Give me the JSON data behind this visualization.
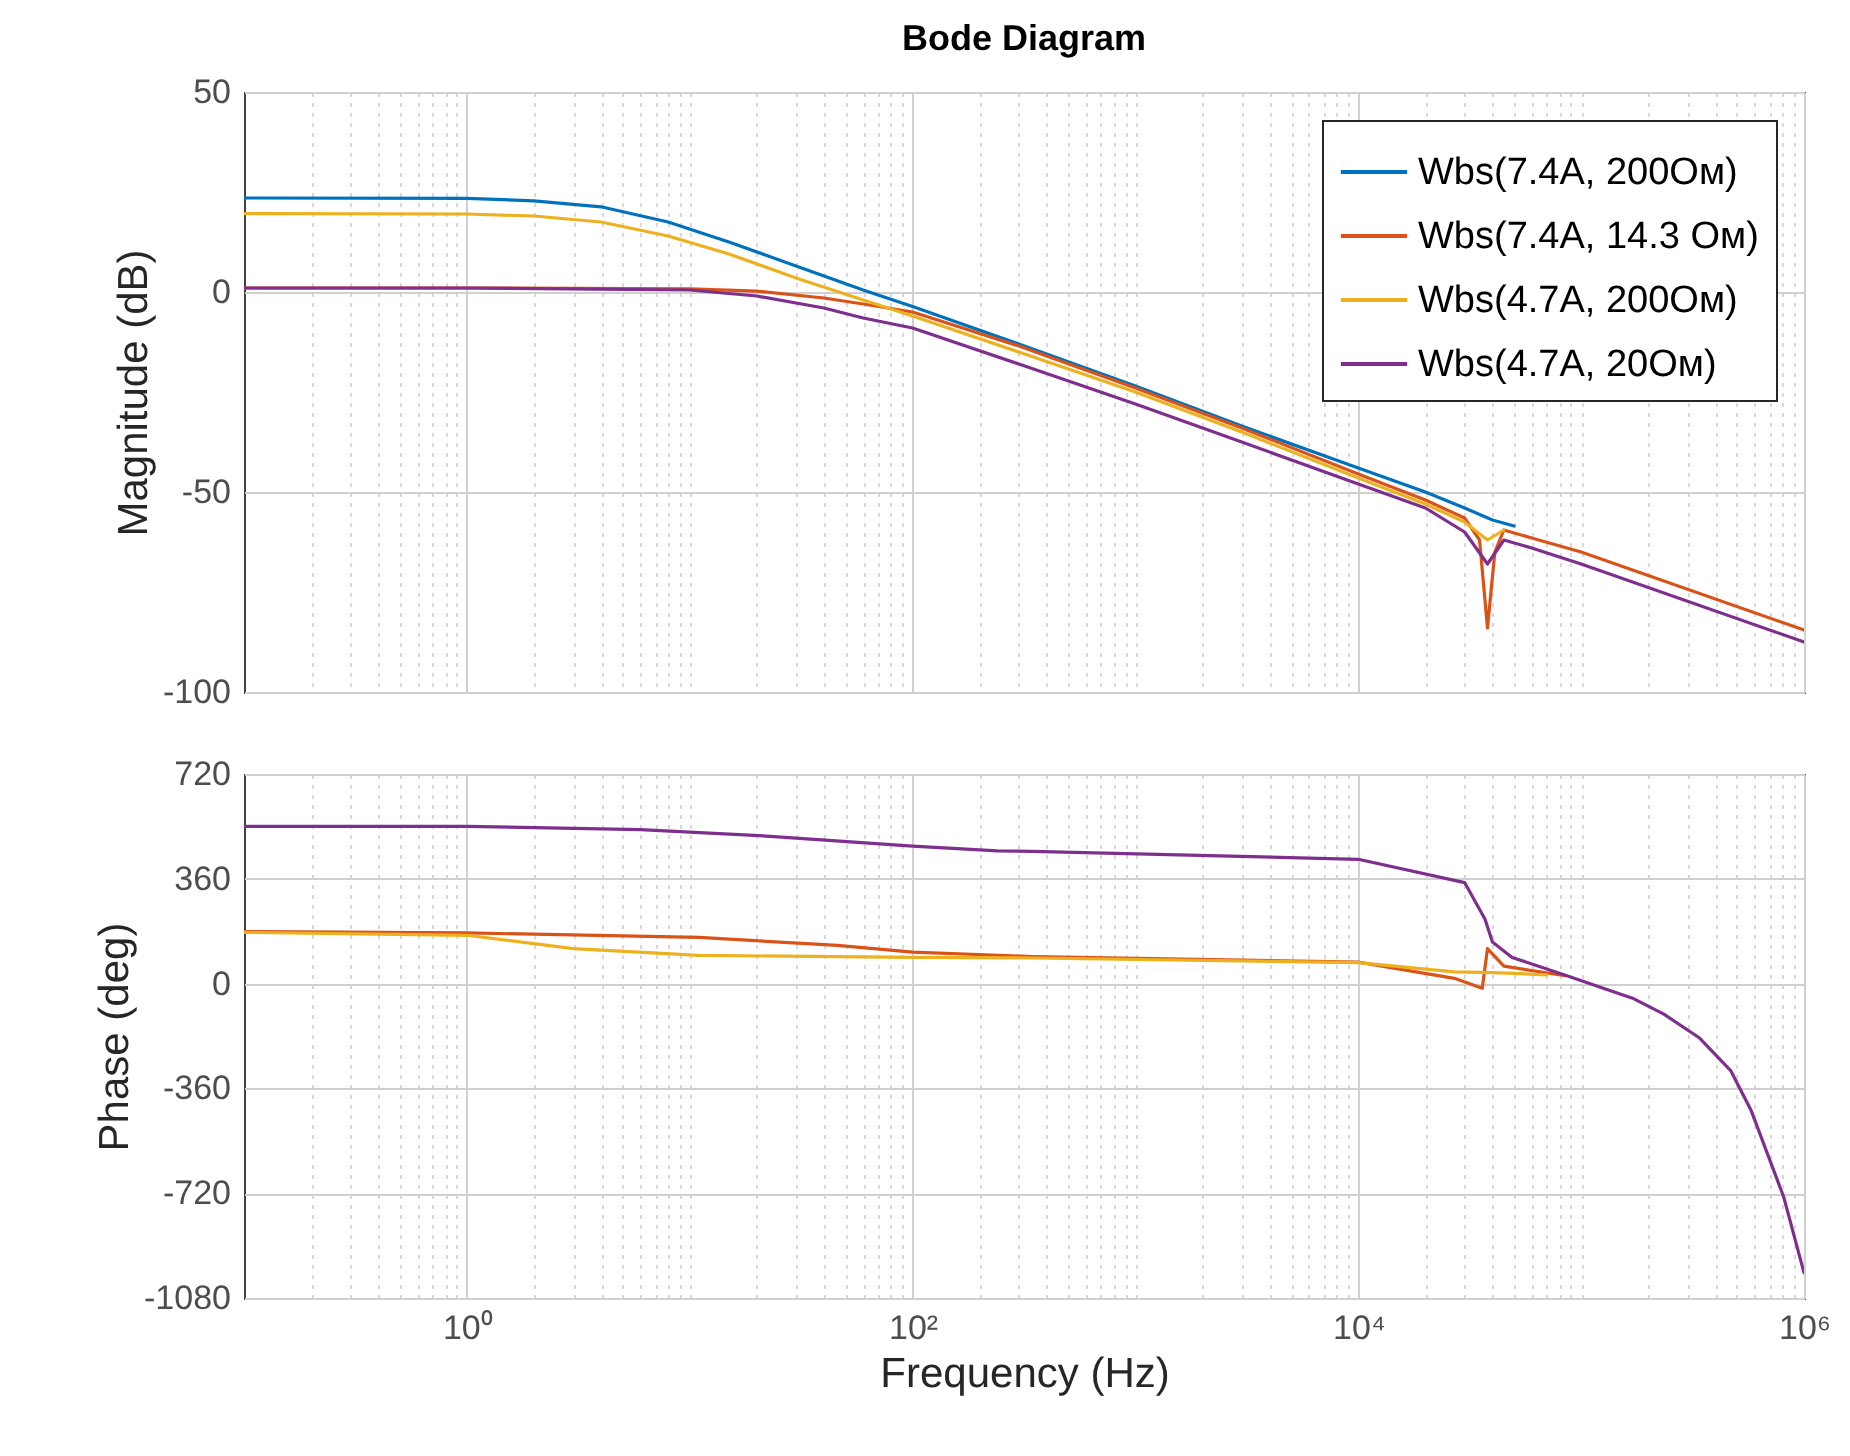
{
  "chart_data": [
    {
      "type": "line",
      "title": "Bode Diagram",
      "ylabel": "Magnitude (dB)",
      "log": "x",
      "grid": true,
      "legend": "top right",
      "tick_labels": "y",
      "xlim": [
        0.1,
        1000000
      ],
      "ylim": [
        -100,
        50
      ],
      "yticks": [
        -100,
        -50,
        0,
        50
      ],
      "xticks": [
        {
          "value": 0.2,
          "label": null
        },
        {
          "value": 0.3,
          "label": null
        },
        {
          "value": 0.4,
          "label": null
        },
        {
          "value": 0.5,
          "label": null
        },
        {
          "value": 0.6,
          "label": null
        },
        {
          "value": 0.7,
          "label": null
        },
        {
          "value": 0.8,
          "label": null
        },
        {
          "value": 0.9,
          "label": null
        },
        1,
        {
          "value": 2,
          "label": null
        },
        {
          "value": 3,
          "label": null
        },
        {
          "value": 4,
          "label": null
        },
        {
          "value": 5,
          "label": null
        },
        {
          "value": 6,
          "label": null
        },
        {
          "value": 7,
          "label": null
        },
        {
          "value": 8,
          "label": null
        },
        {
          "value": 9,
          "label": null
        },
        {
          "value": 10,
          "label": null
        },
        {
          "value": 20,
          "label": null
        },
        {
          "value": 30,
          "label": null
        },
        {
          "value": 40,
          "label": null
        },
        {
          "value": 50,
          "label": null
        },
        {
          "value": 60,
          "label": null
        },
        {
          "value": 70,
          "label": null
        },
        {
          "value": 80,
          "label": null
        },
        {
          "value": 90,
          "label": null
        },
        100,
        {
          "value": 200,
          "label": null
        },
        {
          "value": 300,
          "label": null
        },
        {
          "value": 400,
          "label": null
        },
        {
          "value": 500,
          "label": null
        },
        {
          "value": 600,
          "label": null
        },
        {
          "value": 700,
          "label": null
        },
        {
          "value": 800,
          "label": null
        },
        {
          "value": 900,
          "label": null
        },
        {
          "value": 1000,
          "label": null
        },
        {
          "value": 2000,
          "label": null
        },
        {
          "value": 3000,
          "label": null
        },
        {
          "value": 4000,
          "label": null
        },
        {
          "value": 5000,
          "label": null
        },
        {
          "value": 6000,
          "label": null
        },
        {
          "value": 7000,
          "label": null
        },
        {
          "value": 8000,
          "label": null
        },
        {
          "value": 9000,
          "label": null
        },
        10000,
        {
          "value": 20000,
          "label": null
        },
        {
          "value": 30000,
          "label": null
        },
        {
          "value": 40000,
          "label": null
        },
        {
          "value": 50000,
          "label": null
        },
        {
          "value": 60000,
          "label": null
        },
        {
          "value": 70000,
          "label": null
        },
        {
          "value": 80000,
          "label": null
        },
        {
          "value": 90000,
          "label": null
        },
        {
          "value": 100000,
          "label": null
        },
        {
          "value": 200000,
          "label": null
        },
        {
          "value": 300000,
          "label": null
        },
        {
          "value": 400000,
          "label": null
        },
        {
          "value": 500000,
          "label": null
        },
        {
          "value": 600000,
          "label": null
        },
        {
          "value": 700000,
          "label": null
        },
        {
          "value": 800000,
          "label": null
        },
        {
          "value": 900000,
          "label": null
        },
        1000000
      ],
      "series": [
        {
          "name": "Wbs(7.4A, 200Ом)",
          "color": "#0072bd",
          "x": [
            0.1,
            1,
            2,
            4,
            8,
            15,
            30,
            60,
            100,
            300,
            1000,
            3000,
            10000,
            20000,
            30000,
            40000,
            50000
          ],
          "values": [
            23.5,
            23.4,
            22.8,
            21.3,
            17.5,
            12.5,
            6.5,
            0.5,
            -3.6,
            -13,
            -23.5,
            -33.5,
            -44,
            -50,
            -54,
            -57,
            -58.5
          ]
        },
        {
          "name": "Wbs(7.4A, 14.3 Ом)",
          "color": "#d95319",
          "x": [
            0.1,
            1,
            10,
            20,
            40,
            60,
            100,
            300,
            1000,
            3000,
            10000,
            20000,
            30000,
            35000,
            38000,
            41000,
            45000,
            60000,
            100000,
            1000000
          ],
          "values": [
            1,
            1,
            0.8,
            0.2,
            -1.5,
            -3,
            -5,
            -13.5,
            -24,
            -34,
            -45.5,
            -52,
            -56.5,
            -62,
            -84,
            -65,
            -59.5,
            -61.5,
            -65,
            -84.5
          ]
        },
        {
          "name": "Wbs(4.7A, 200Ом)",
          "color": "#edb120",
          "x": [
            0.1,
            1,
            2,
            4,
            8,
            15,
            30,
            60,
            100,
            300,
            1000,
            3000,
            10000,
            20000,
            30000,
            38000,
            45000
          ],
          "values": [
            19.6,
            19.5,
            19,
            17.5,
            14,
            9.5,
            3.5,
            -2,
            -6,
            -15,
            -25,
            -35,
            -46.5,
            -53,
            -57.5,
            -62,
            -59.5
          ]
        },
        {
          "name": "Wbs(4.7A, 20Ом)",
          "color": "#7e2f8e",
          "x": [
            0.1,
            1,
            10,
            20,
            40,
            60,
            100,
            300,
            1000,
            3000,
            10000,
            20000,
            30000,
            38000,
            45000,
            60000,
            100000,
            1000000
          ],
          "values": [
            1,
            1,
            0.5,
            -1,
            -4,
            -6.5,
            -9,
            -18,
            -28,
            -37.5,
            -48,
            -54,
            -60,
            -68,
            -62,
            -64,
            -68,
            -87.5
          ]
        }
      ]
    },
    {
      "type": "line",
      "xlabel": "Frequency  (Hz)",
      "ylabel": "Phase (deg)",
      "log": "x",
      "grid": true,
      "xlim": [
        0.1,
        1000000
      ],
      "ylim": [
        -1080,
        720
      ],
      "yticks": [
        -1080,
        -720,
        -360,
        0,
        360,
        720
      ],
      "xticks": [
        {
          "value": 0.2,
          "label": null
        },
        {
          "value": 0.3,
          "label": null
        },
        {
          "value": 0.4,
          "label": null
        },
        {
          "value": 0.5,
          "label": null
        },
        {
          "value": 0.6,
          "label": null
        },
        {
          "value": 0.7,
          "label": null
        },
        {
          "value": 0.8,
          "label": null
        },
        {
          "value": 0.9,
          "label": null
        },
        {
          "value": 1,
          "label": "10⁰"
        },
        {
          "value": 2,
          "label": null
        },
        {
          "value": 3,
          "label": null
        },
        {
          "value": 4,
          "label": null
        },
        {
          "value": 5,
          "label": null
        },
        {
          "value": 6,
          "label": null
        },
        {
          "value": 7,
          "label": null
        },
        {
          "value": 8,
          "label": null
        },
        {
          "value": 9,
          "label": null
        },
        {
          "value": 10,
          "label": null
        },
        {
          "value": 20,
          "label": null
        },
        {
          "value": 30,
          "label": null
        },
        {
          "value": 40,
          "label": null
        },
        {
          "value": 50,
          "label": null
        },
        {
          "value": 60,
          "label": null
        },
        {
          "value": 70,
          "label": null
        },
        {
          "value": 80,
          "label": null
        },
        {
          "value": 90,
          "label": null
        },
        {
          "value": 100,
          "label": "10²"
        },
        {
          "value": 200,
          "label": null
        },
        {
          "value": 300,
          "label": null
        },
        {
          "value": 400,
          "label": null
        },
        {
          "value": 500,
          "label": null
        },
        {
          "value": 600,
          "label": null
        },
        {
          "value": 700,
          "label": null
        },
        {
          "value": 800,
          "label": null
        },
        {
          "value": 900,
          "label": null
        },
        {
          "value": 1000,
          "label": null
        },
        {
          "value": 2000,
          "label": null
        },
        {
          "value": 3000,
          "label": null
        },
        {
          "value": 4000,
          "label": null
        },
        {
          "value": 5000,
          "label": null
        },
        {
          "value": 6000,
          "label": null
        },
        {
          "value": 7000,
          "label": null
        },
        {
          "value": 8000,
          "label": null
        },
        {
          "value": 9000,
          "label": null
        },
        {
          "value": 10000,
          "label": "10⁴"
        },
        {
          "value": 20000,
          "label": null
        },
        {
          "value": 30000,
          "label": null
        },
        {
          "value": 40000,
          "label": null
        },
        {
          "value": 50000,
          "label": null
        },
        {
          "value": 60000,
          "label": null
        },
        {
          "value": 70000,
          "label": null
        },
        {
          "value": 80000,
          "label": null
        },
        {
          "value": 90000,
          "label": null
        },
        {
          "value": 100000,
          "label": null
        },
        {
          "value": 200000,
          "label": null
        },
        {
          "value": 300000,
          "label": null
        },
        {
          "value": 400000,
          "label": null
        },
        {
          "value": 500000,
          "label": null
        },
        {
          "value": 600000,
          "label": null
        },
        {
          "value": 700000,
          "label": null
        },
        {
          "value": 800000,
          "label": null
        },
        {
          "value": 900000,
          "label": null
        },
        {
          "value": 1000000,
          "label": "10⁶"
        }
      ],
      "series": [
        {
          "color": "#d95319",
          "x": [
            0.1,
            1,
            11,
            46,
            100,
            345,
            10000,
            27000,
            36000,
            38000,
            45000,
            85000
          ],
          "values": [
            179,
            174,
            159,
            131,
            108,
            93,
            74,
            18,
            -16,
            120,
            60,
            27
          ]
        },
        {
          "color": "#edb120",
          "x": [
            0.1,
            1,
            3,
            11,
            100,
            345,
            10000,
            27000,
            40000,
            50000,
            70000
          ],
          "values": [
            176,
            166,
            120,
            97,
            90,
            88,
            72,
            40,
            38,
            35,
            30
          ]
        },
        {
          "color": "#7e2f8e",
          "x": [
            0.1,
            1,
            6,
            23,
            100,
            240,
            345,
            10000,
            30000,
            37000,
            40000,
            49000,
            85000,
            170000,
            235000,
            340000,
            470000,
            580000,
            810000,
            1000000
          ],
          "values": [
            540,
            540,
            529,
            506,
            472,
            456,
            454,
            427,
            347,
            222,
            143,
            90,
            29,
            -50,
            -105,
            -187,
            -300,
            -437,
            -732,
            -993
          ]
        }
      ]
    }
  ]
}
